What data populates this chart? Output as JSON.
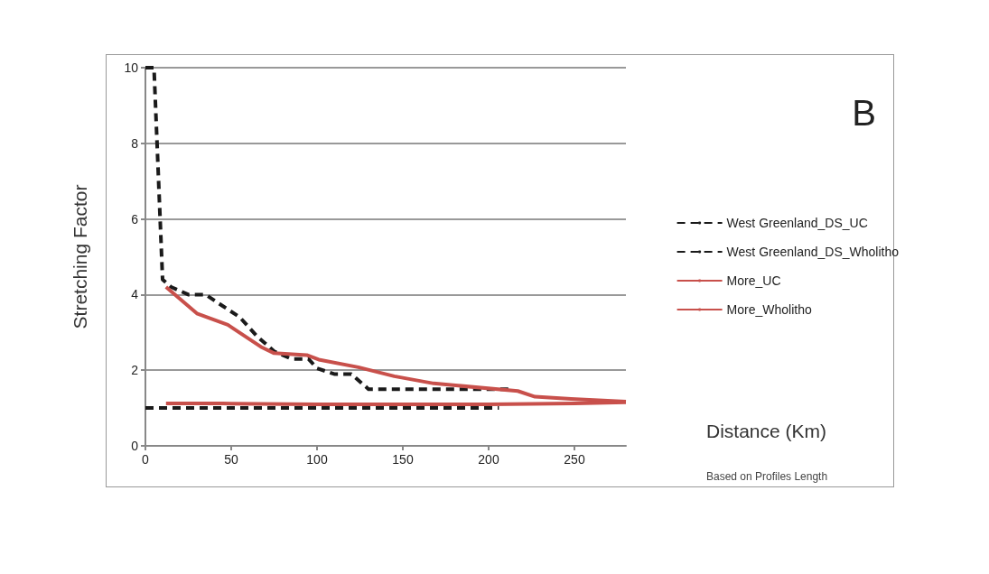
{
  "chart_data": {
    "type": "line",
    "xlabel": "Distance (Km)",
    "ylabel": "Stretching Factor",
    "annotations": [
      "B",
      "Based on Profiles Length"
    ],
    "xlim": [
      0,
      280
    ],
    "xticks": [
      0,
      50,
      100,
      150,
      200,
      250
    ],
    "ylim": [
      0,
      10
    ],
    "yticks": [
      0,
      2,
      4,
      6,
      8,
      10
    ],
    "grid": "y",
    "legend": "right",
    "marker": "none",
    "series": [
      {
        "name": "West Greenland_DS_UC",
        "color": "#1a1a1a",
        "line_style": "dashed",
        "x": [
          0,
          5,
          10,
          15,
          25,
          35,
          45,
          55,
          65,
          75,
          85,
          95,
          100,
          110,
          120,
          130,
          140,
          150,
          160,
          170,
          180,
          190,
          200,
          212
        ],
        "values": [
          10,
          10,
          4.4,
          4.2,
          4.0,
          4.0,
          3.7,
          3.4,
          2.9,
          2.5,
          2.3,
          2.3,
          2.05,
          1.9,
          1.9,
          1.5,
          1.5,
          1.5,
          1.5,
          1.5,
          1.5,
          1.5,
          1.5,
          1.5
        ]
      },
      {
        "name": "West Greenland_DS_Wholitho",
        "color": "#1a1a1a",
        "line_style": "dashed",
        "x": [
          0,
          50,
          100,
          150,
          206
        ],
        "values": [
          1.0,
          1.0,
          1.0,
          1.0,
          1.0
        ]
      },
      {
        "name": "More_UC",
        "color": "#c8504b",
        "line_style": "solid",
        "x": [
          12,
          30,
          48,
          68,
          75,
          94,
          101,
          124,
          145,
          168,
          217,
          227,
          248,
          280
        ],
        "values": [
          4.2,
          3.5,
          3.2,
          2.6,
          2.45,
          2.4,
          2.28,
          2.08,
          1.84,
          1.65,
          1.45,
          1.3,
          1.24,
          1.17
        ]
      },
      {
        "name": "More_Wholitho",
        "color": "#c8504b",
        "line_style": "solid",
        "x": [
          12,
          45,
          100,
          150,
          200,
          250,
          280
        ],
        "values": [
          1.12,
          1.12,
          1.1,
          1.1,
          1.1,
          1.12,
          1.15
        ]
      }
    ]
  }
}
